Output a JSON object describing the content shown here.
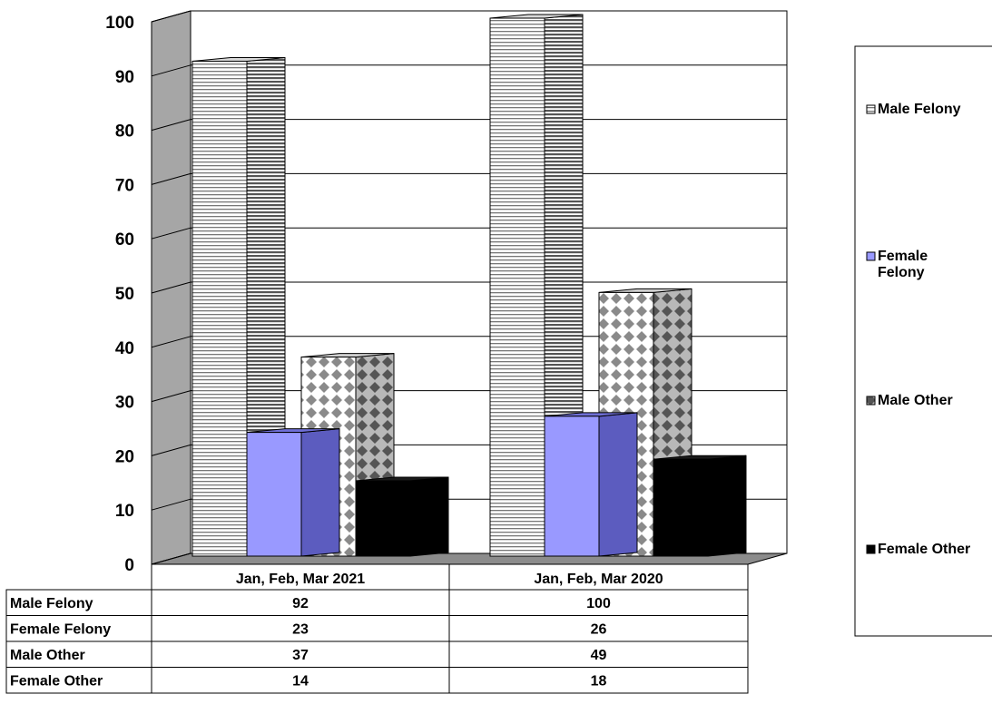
{
  "chart_data": {
    "type": "bar",
    "categories": [
      "Jan, Feb, Mar 2021",
      "Jan, Feb, Mar 2020"
    ],
    "series": [
      {
        "name": "Male Felony",
        "values": [
          92,
          100
        ],
        "pattern": "horizontal-stripes",
        "color": "#ffffff"
      },
      {
        "name": "Female Felony",
        "values": [
          23,
          26
        ],
        "pattern": "solid",
        "color": "#9999ff"
      },
      {
        "name": "Male Other",
        "values": [
          37,
          49
        ],
        "pattern": "diamond-checker",
        "color": "#808080"
      },
      {
        "name": "Female Other",
        "values": [
          14,
          18
        ],
        "pattern": "solid",
        "color": "#000000"
      }
    ],
    "ylim": [
      0,
      100
    ],
    "yticks": [
      0,
      10,
      20,
      30,
      40,
      50,
      60,
      70,
      80,
      90,
      100
    ],
    "title": "",
    "xlabel": "",
    "ylabel": "",
    "grid": true,
    "three_d": true,
    "legend_position": "right",
    "data_table": true,
    "table_rows": [
      {
        "label": "Male Felony",
        "values": [
          "92",
          "100"
        ]
      },
      {
        "label": "Female Felony",
        "values": [
          "23",
          "26"
        ]
      },
      {
        "label": "Male Other",
        "values": [
          "37",
          "49"
        ]
      },
      {
        "label": "Female Other",
        "values": [
          "14",
          "18"
        ]
      }
    ],
    "legend_labels": [
      [
        "Male Felony"
      ],
      [
        "Female",
        "Felony"
      ],
      [
        "Male Other"
      ],
      [
        "Female Other"
      ]
    ]
  }
}
